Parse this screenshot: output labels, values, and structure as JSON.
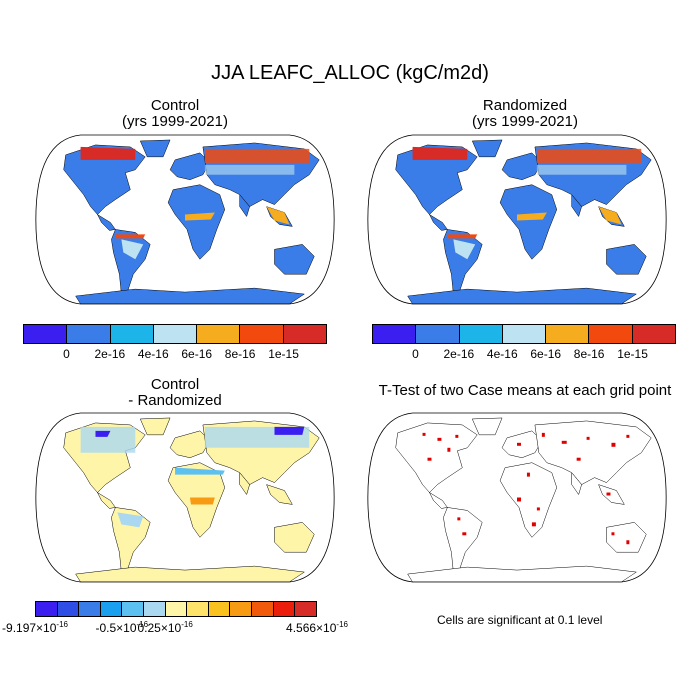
{
  "title": "JJA LEAFC_ALLOC (kgC/m2d)",
  "panels": {
    "control": {
      "title_line1": "Control",
      "title_line2": "(yrs 1999-2021)"
    },
    "randomized": {
      "title_line1": "Randomized",
      "title_line2": "(yrs 1999-2021)"
    },
    "difference": {
      "title_line1": "Control",
      "title_line2": "- Randomized"
    },
    "ttest": {
      "title": "T-Test of two Case means at each grid point",
      "note": "Cells are significant at 0.1 level"
    }
  },
  "colorbar_main": {
    "colors": [
      "#3b1ff0",
      "#3a7de8",
      "#1db4ea",
      "#bde3f2",
      "#f5ac1e",
      "#f24a0e",
      "#d62b27"
    ],
    "labels": [
      "0",
      "2e-16",
      "4e-16",
      "6e-16",
      "8e-16",
      "1e-15"
    ]
  },
  "colorbar_diff": {
    "colors": [
      "#3b1ff0",
      "#2f4ee6",
      "#3a7de8",
      "#1aa0ef",
      "#5cc0f0",
      "#a9d8f0",
      "#fff5a8",
      "#fde36a",
      "#fac21e",
      "#f79a14",
      "#f25a0b",
      "#ea1e0b",
      "#d62b27"
    ],
    "labels": [
      {
        "mant": "-9.197",
        "exp": "-16"
      },
      {
        "mant": "-0.5",
        "exp": "-16"
      },
      {
        "mant": "0.25",
        "exp": "-16"
      },
      {
        "mant": "4.566",
        "exp": "-16"
      }
    ],
    "times": "×10"
  },
  "colors": {
    "ocean": "#ffffff",
    "land_main": "#3a7de8",
    "land_diff": "#fff5a8",
    "significant": "#e00000"
  }
}
